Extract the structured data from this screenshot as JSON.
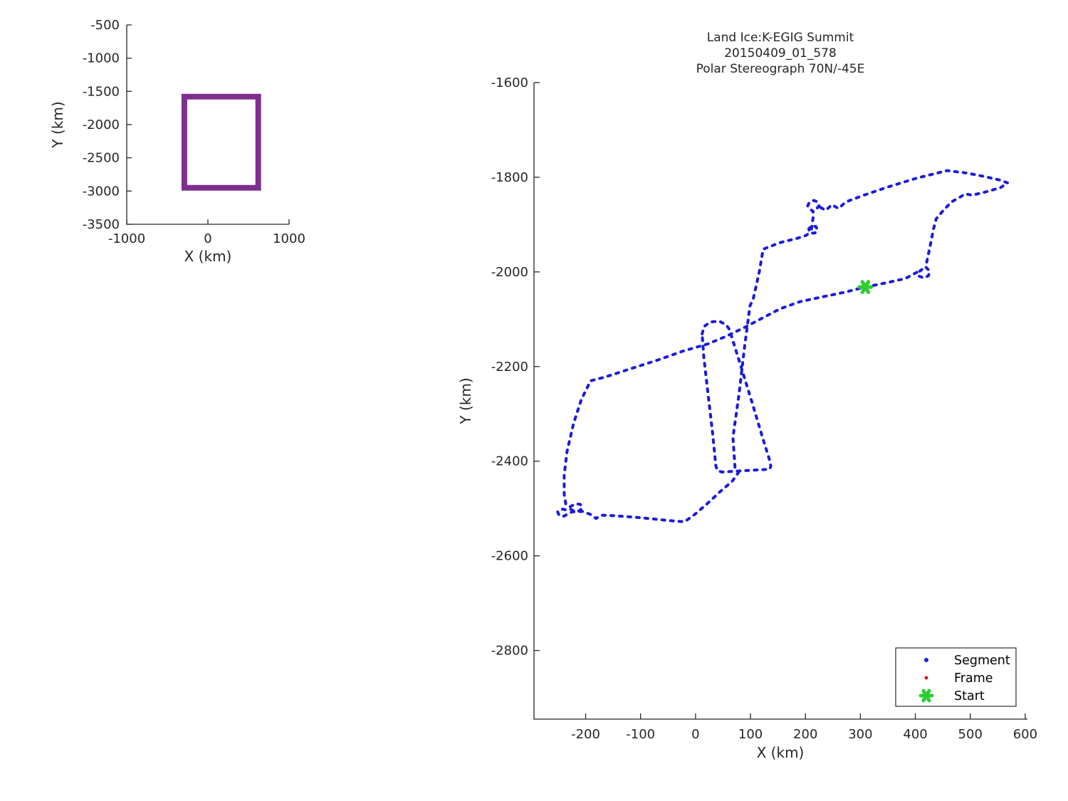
{
  "chart_data": [
    {
      "id": "overview",
      "type": "line",
      "title": "",
      "xlabel": "X (km)",
      "ylabel": "Y (km)",
      "xticks": [
        -1000,
        0,
        1000
      ],
      "yticks": [
        -500,
        -1000,
        -1500,
        -2000,
        -2500,
        -3000,
        -3500
      ],
      "xlim": [
        -1000,
        1000
      ],
      "ylim": [
        -3500,
        -500
      ],
      "grid": false,
      "series": [
        {
          "name": "coverage-box",
          "color": "#7E2F8E",
          "line_width": 8,
          "closed": true,
          "points": [
            [
              -290,
              -1580
            ],
            [
              620,
              -1580
            ],
            [
              620,
              -2950
            ],
            [
              -290,
              -2950
            ]
          ]
        }
      ]
    },
    {
      "id": "main",
      "type": "line",
      "title_lines": [
        "Land Ice:K-EGIG Summit",
        "20150409_01_578",
        "Polar Stereograph 70N/-45E"
      ],
      "xlabel": "X (km)",
      "ylabel": "Y (km)",
      "xticks": [
        -200,
        -100,
        0,
        100,
        200,
        300,
        400,
        500,
        600
      ],
      "yticks": [
        -1600,
        -1800,
        -2000,
        -2200,
        -2400,
        -2600,
        -2800
      ],
      "xlim": [
        -294,
        604
      ],
      "ylim": [
        -2945,
        -1600
      ],
      "grid": false,
      "legend_position": "bottom-right",
      "legend": [
        {
          "label": "Segment",
          "marker": "dot",
          "color": "#1A1ADC",
          "size": 3
        },
        {
          "label": "Frame",
          "marker": "dot",
          "color": "#DC1414",
          "size": 2.5
        },
        {
          "label": "Start",
          "marker": "asterisk",
          "color": "#2DCD32",
          "size": 8
        }
      ],
      "start": {
        "point": [
          309,
          -2032
        ],
        "color": "#2DCD32"
      },
      "series": [
        {
          "name": "segment-track",
          "color": "#1A1ADC",
          "line_width": 4,
          "dash": "4 8",
          "closed": false,
          "points": [
            [
              228,
              -1864
            ],
            [
              237,
              -1870
            ],
            [
              248,
              -1858
            ],
            [
              260,
              -1866
            ],
            [
              274,
              -1852
            ],
            [
              306,
              -1838
            ],
            [
              352,
              -1820
            ],
            [
              402,
              -1802
            ],
            [
              458,
              -1786
            ],
            [
              493,
              -1791
            ],
            [
              524,
              -1798
            ],
            [
              554,
              -1806
            ],
            [
              568,
              -1812
            ],
            [
              555,
              -1822
            ],
            [
              525,
              -1832
            ],
            [
              503,
              -1838
            ],
            [
              491,
              -1835
            ],
            [
              480,
              -1843
            ],
            [
              466,
              -1852
            ],
            [
              451,
              -1870
            ],
            [
              438,
              -1888
            ],
            [
              433,
              -1910
            ],
            [
              427,
              -1945
            ],
            [
              420,
              -1983
            ],
            [
              419,
              -1990
            ],
            [
              426,
              -1998
            ],
            [
              424,
              -2008
            ],
            [
              416,
              -2013
            ],
            [
              407,
              -2009
            ],
            [
              406,
              -2000
            ],
            [
              412,
              -1995
            ],
            [
              382,
              -2014
            ],
            [
              347,
              -2023
            ],
            [
              309,
              -2032
            ],
            [
              271,
              -2043
            ],
            [
              230,
              -2053
            ],
            [
              190,
              -2063
            ],
            [
              154,
              -2078
            ],
            [
              124,
              -2096
            ],
            [
              95,
              -2114
            ],
            [
              58,
              -2135
            ],
            [
              23,
              -2152
            ],
            [
              -22,
              -2167
            ],
            [
              -68,
              -2186
            ],
            [
              -119,
              -2205
            ],
            [
              -164,
              -2222
            ],
            [
              -191,
              -2230
            ],
            [
              -208,
              -2270
            ],
            [
              -222,
              -2320
            ],
            [
              -234,
              -2380
            ],
            [
              -239,
              -2430
            ],
            [
              -239,
              -2470
            ],
            [
              -236,
              -2492
            ],
            [
              -228,
              -2496
            ],
            [
              -219,
              -2490
            ],
            [
              -210,
              -2491
            ],
            [
              -206,
              -2498
            ],
            [
              -211,
              -2505
            ],
            [
              -220,
              -2506
            ],
            [
              -228,
              -2501
            ],
            [
              -235,
              -2503
            ],
            [
              -244,
              -2501
            ],
            [
              -251,
              -2507
            ],
            [
              -248,
              -2515
            ],
            [
              -239,
              -2516
            ],
            [
              -231,
              -2510
            ],
            [
              -224,
              -2507
            ],
            [
              -206,
              -2506
            ],
            [
              -190,
              -2513
            ],
            [
              -181,
              -2521
            ],
            [
              -172,
              -2514
            ],
            [
              -150,
              -2515
            ],
            [
              -114,
              -2518
            ],
            [
              -78,
              -2522
            ],
            [
              -43,
              -2526
            ],
            [
              -20,
              -2528
            ],
            [
              -2,
              -2513
            ],
            [
              21,
              -2490
            ],
            [
              45,
              -2464
            ],
            [
              67,
              -2442
            ],
            [
              78,
              -2424
            ],
            [
              72,
              -2415
            ],
            [
              68,
              -2350
            ],
            [
              79,
              -2260
            ],
            [
              89,
              -2160
            ],
            [
              99,
              -2072
            ],
            [
              105,
              -2057
            ],
            [
              116,
              -2000
            ],
            [
              123,
              -1952
            ],
            [
              154,
              -1938
            ],
            [
              185,
              -1929
            ],
            [
              201,
              -1923
            ],
            [
              208,
              -1917
            ],
            [
              206,
              -1909
            ],
            [
              211,
              -1903
            ],
            [
              219,
              -1904
            ],
            [
              222,
              -1912
            ],
            [
              217,
              -1918
            ],
            [
              210,
              -1918
            ],
            [
              212,
              -1900
            ],
            [
              214,
              -1885
            ],
            [
              214,
              -1872
            ],
            [
              209,
              -1868
            ],
            [
              204,
              -1861
            ],
            [
              207,
              -1853
            ],
            [
              215,
              -1849
            ],
            [
              222,
              -1852
            ],
            [
              225,
              -1860
            ],
            [
              220,
              -1867
            ],
            [
              228,
              -1864
            ]
          ]
        },
        {
          "name": "racetrack-loop",
          "color": "#1A1ADC",
          "line_width": 4,
          "dash": "4 8",
          "closed": true,
          "points": [
            [
              12,
              -2131
            ],
            [
              16,
              -2115
            ],
            [
              27,
              -2106
            ],
            [
              43,
              -2104
            ],
            [
              56,
              -2112
            ],
            [
              63,
              -2124
            ],
            [
              65,
              -2134
            ],
            [
              84,
              -2205
            ],
            [
              104,
              -2280
            ],
            [
              122,
              -2350
            ],
            [
              134,
              -2395
            ],
            [
              137,
              -2410
            ],
            [
              135,
              -2417
            ],
            [
              104,
              -2419
            ],
            [
              73,
              -2421
            ],
            [
              48,
              -2423
            ],
            [
              40,
              -2420
            ],
            [
              37,
              -2410
            ],
            [
              31,
              -2340
            ],
            [
              23,
              -2260
            ],
            [
              15,
              -2180
            ]
          ]
        }
      ]
    }
  ],
  "colors": {
    "segment_blue": "#1A1ADC",
    "frame_red": "#DC1414",
    "start_green": "#2DCD32",
    "box_purple": "#7E2F8E",
    "axis": "#262626"
  }
}
